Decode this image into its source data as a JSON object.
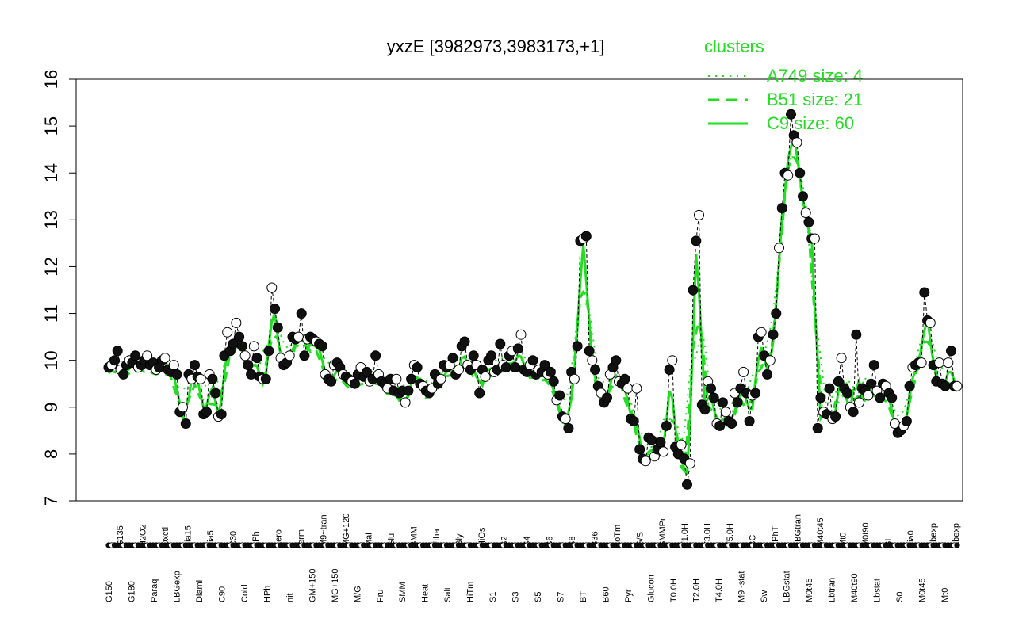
{
  "chart_data": {
    "type": "line",
    "title": "yxzE [3982973,3983173,+1]",
    "xlabel": "",
    "ylabel": "",
    "ylim": [
      7,
      16
    ],
    "yticks": [
      7,
      8,
      9,
      10,
      11,
      12,
      13,
      14,
      15,
      16
    ],
    "grid": false,
    "legend_placement": "top-right",
    "legend": {
      "title": "clusters",
      "entries": [
        {
          "label": "A749 size: 4",
          "style": "dotted"
        },
        {
          "label": "B51 size: 21",
          "style": "dashed"
        },
        {
          "label": "C9 size: 60",
          "style": "solid"
        }
      ]
    },
    "x_labels": [
      "G150",
      "G135",
      "G180",
      "H2O2",
      "Paraq",
      "Oxctl",
      "LBGexp",
      "dia15",
      "Diami",
      "dia5",
      "C90",
      "C30",
      "Cold",
      "LPh",
      "HPh",
      "aero",
      "nit",
      "ferm",
      "GM+150",
      "M9~tran",
      "MG+150",
      "MG+120",
      "M/G",
      "Mal",
      "Fru",
      "Glu",
      "SMM",
      "BMM",
      "Heat",
      "Etha",
      "Salt",
      "Gly",
      "HiTm",
      "HiOs",
      "S1",
      "S2",
      "S3",
      "S4",
      "S5",
      "S6",
      "S7",
      "S8",
      "BT",
      "B36",
      "B60",
      "LoTm",
      "Pyr",
      "G/S",
      "Glucon",
      "SMMPr",
      "T0.0H",
      "T1.0H",
      "T2.0H",
      "T3.0H",
      "T4.0H",
      "T5.0H",
      "M9~stat",
      "BC",
      "Sw",
      "LPhT",
      "LBGstat",
      "LBGtran",
      "M0t45",
      "M40t45",
      "Lbtran",
      "Mt0",
      "M40t90",
      "M0t90",
      "Lbstat",
      "BI",
      "S0",
      "dia0",
      "M0t45",
      "Lbexp",
      "Mt0",
      "Lbexp"
    ],
    "series": [
      {
        "name": "",
        "values": [
          9.85,
          9.9,
          10.0,
          10.2,
          9.8,
          9.7,
          9.9,
          10.0,
          9.95,
          10.1,
          9.85,
          9.9,
          10.0,
          10.1,
          9.9,
          9.95,
          9.8,
          9.85,
          10.0,
          10.05,
          9.8,
          9.75,
          9.9,
          9.7,
          8.9,
          9.0,
          8.65,
          9.7,
          9.6,
          9.9,
          9.65,
          9.6,
          8.85,
          8.9,
          9.7,
          9.6,
          9.3,
          8.8,
          8.85,
          10.1,
          10.6,
          10.2,
          10.35,
          10.8,
          10.5,
          10.3,
          10.1,
          9.9,
          9.7,
          10.3,
          10.05,
          9.65,
          9.6,
          9.6,
          10.2,
          11.55,
          11.1,
          10.7,
          10.05,
          9.9,
          9.95,
          10.1,
          10.5,
          10.45,
          10.5,
          11.0,
          10.1,
          10.45,
          10.5,
          10.45,
          10.4,
          10.35,
          10.3,
          9.7,
          9.6,
          9.55,
          9.9,
          9.95,
          9.85,
          9.7,
          9.65,
          9.6,
          9.55,
          9.5,
          9.7,
          9.85,
          9.65,
          9.75,
          9.55,
          9.6,
          10.1,
          9.7,
          9.55,
          9.5,
          9.4,
          9.6,
          9.35,
          9.6,
          9.3,
          9.35,
          9.1,
          9.35,
          9.6,
          9.9,
          9.85,
          9.5,
          9.45,
          9.35,
          9.3,
          9.4,
          9.7,
          9.5,
          9.6,
          9.9,
          9.85,
          9.9,
          10.05,
          9.7,
          9.8,
          10.3,
          10.4,
          9.9,
          9.8,
          10.1,
          9.9,
          9.3,
          9.8,
          9.65,
          10.0,
          10.1,
          9.75,
          9.8,
          10.35,
          9.9,
          9.85,
          10.1,
          10.2,
          9.85,
          10.25,
          10.55,
          9.8,
          9.75,
          9.9,
          10.0,
          9.7,
          9.8,
          9.75,
          9.9,
          9.7,
          9.75,
          9.55,
          9.15,
          9.25,
          8.8,
          8.75,
          8.55,
          9.75,
          9.6,
          10.3,
          12.55,
          12.6,
          12.65,
          10.2,
          10.0,
          9.8,
          9.45,
          9.3,
          9.1,
          9.2,
          9.7,
          9.85,
          10.0,
          9.55,
          9.5,
          9.6,
          9.4,
          8.75,
          8.7,
          9.4,
          8.1,
          7.9,
          7.85,
          8.35,
          8.3,
          7.95,
          8.1,
          8.25,
          8.05,
          8.6,
          9.8,
          10.0,
          8.15,
          8.0,
          8.2,
          7.9,
          7.35,
          7.8,
          11.5,
          12.55,
          13.1,
          9.05,
          8.95,
          9.55,
          9.4,
          9.2,
          8.65,
          8.6,
          9.1,
          8.9,
          8.7,
          8.65,
          9.3,
          9.1,
          9.4,
          9.75,
          9.3,
          8.7,
          9.25,
          9.3,
          10.5,
          10.6,
          10.1,
          9.7,
          10.0,
          10.55,
          11.0,
          12.4,
          13.25,
          14.0,
          13.95,
          15.25,
          14.8,
          14.65,
          14.0,
          13.5,
          13.15,
          12.95,
          12.6,
          12.6,
          8.55,
          9.2,
          8.9,
          8.85,
          9.4,
          8.75,
          8.8,
          9.55,
          10.05,
          9.4,
          9.3,
          9.0,
          8.9,
          10.55,
          9.1,
          9.4,
          9.35,
          9.25,
          9.5,
          9.9,
          9.35,
          9.2,
          9.5,
          9.45,
          9.3,
          9.2,
          8.65,
          8.45,
          8.5,
          8.6,
          8.7,
          9.45,
          9.85,
          9.9,
          9.95,
          9.95,
          11.45,
          10.85,
          10.8,
          9.9,
          9.55,
          9.95,
          9.5,
          9.45,
          9.95,
          10.2,
          9.45,
          9.45
        ]
      }
    ]
  }
}
